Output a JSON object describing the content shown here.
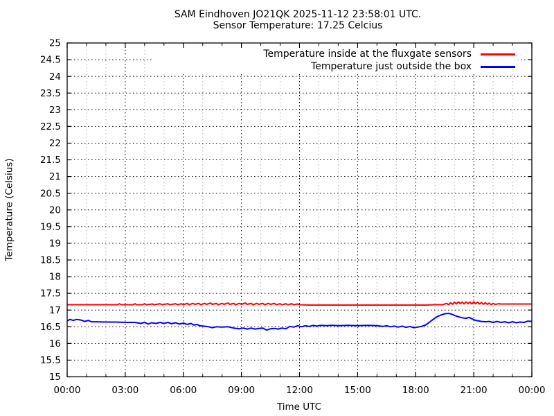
{
  "chart_data": {
    "type": "line",
    "title": "SAM Eindhoven JO21QK 2025-11-12 23:58:01 UTC.",
    "subtitle": "Sensor Temperature: 17.25 Celcius",
    "xlabel": "Time UTC",
    "ylabel": "Temperature (Celsius)",
    "xlim_hours": [
      0,
      24
    ],
    "ylim": [
      15,
      25
    ],
    "y_tick_step": 0.5,
    "y_tick_labels": [
      "15",
      "15.5",
      "16",
      "16.5",
      "17",
      "17.5",
      "18",
      "18.5",
      "19",
      "19.5",
      "20",
      "20.5",
      "21",
      "21.5",
      "22",
      "22.5",
      "23",
      "23.5",
      "24",
      "24.5",
      "25"
    ],
    "x_ticks": [
      {
        "hour": 0,
        "label": "00:00"
      },
      {
        "hour": 3,
        "label": "03:00"
      },
      {
        "hour": 6,
        "label": "06:00"
      },
      {
        "hour": 9,
        "label": "09:00"
      },
      {
        "hour": 12,
        "label": "12:00"
      },
      {
        "hour": 15,
        "label": "15:00"
      },
      {
        "hour": 18,
        "label": "18:00"
      },
      {
        "hour": 21,
        "label": "21:00"
      },
      {
        "hour": 24,
        "label": "00:00"
      }
    ],
    "x_minor_tick_interval_hours": 1,
    "grid": {
      "style": "dotted",
      "major_color": "#000000",
      "minor_color": "#b4b4b4",
      "on": true
    },
    "legend": {
      "position": "top-right-inside",
      "entries": [
        {
          "label": "Temperature inside at the fluxgate sensors",
          "color": "#ff0000"
        },
        {
          "label": "Temperature just outside the box",
          "color": "#0000ff"
        }
      ]
    },
    "series": [
      {
        "name": "Temperature inside at the fluxgate sensors",
        "color": "#ff0000",
        "unit": "Celsius",
        "points": [
          [
            0,
            17.16
          ],
          [
            0.5,
            17.16
          ],
          [
            1,
            17.16
          ],
          [
            1.5,
            17.16
          ],
          [
            2,
            17.16
          ],
          [
            2.6,
            17.16
          ],
          [
            2.7,
            17.19
          ],
          [
            2.8,
            17.16
          ],
          [
            3.4,
            17.16
          ],
          [
            3.5,
            17.19
          ],
          [
            3.6,
            17.16
          ],
          [
            3.9,
            17.16
          ],
          [
            4,
            17.19
          ],
          [
            4.1,
            17.16
          ],
          [
            4.4,
            17.18
          ],
          [
            4.5,
            17.16
          ],
          [
            4.8,
            17.19
          ],
          [
            4.9,
            17.16
          ],
          [
            5.2,
            17.19
          ],
          [
            5.3,
            17.16
          ],
          [
            5.6,
            17.19
          ],
          [
            5.7,
            17.16
          ],
          [
            5.9,
            17.19
          ],
          [
            6,
            17.16
          ],
          [
            6.2,
            17.2
          ],
          [
            6.3,
            17.16
          ],
          [
            6.5,
            17.2
          ],
          [
            6.6,
            17.17
          ],
          [
            6.8,
            17.2
          ],
          [
            6.9,
            17.16
          ],
          [
            7.1,
            17.2
          ],
          [
            7.2,
            17.17
          ],
          [
            7.4,
            17.21
          ],
          [
            7.5,
            17.17
          ],
          [
            7.7,
            17.2
          ],
          [
            7.8,
            17.16
          ],
          [
            8,
            17.2
          ],
          [
            8.1,
            17.17
          ],
          [
            8.3,
            17.21
          ],
          [
            8.4,
            17.17
          ],
          [
            8.6,
            17.2
          ],
          [
            8.7,
            17.16
          ],
          [
            8.9,
            17.2
          ],
          [
            9,
            17.17
          ],
          [
            9.2,
            17.21
          ],
          [
            9.3,
            17.17
          ],
          [
            9.5,
            17.2
          ],
          [
            9.6,
            17.16
          ],
          [
            9.8,
            17.2
          ],
          [
            9.9,
            17.17
          ],
          [
            10.1,
            17.2
          ],
          [
            10.2,
            17.16
          ],
          [
            10.4,
            17.2
          ],
          [
            10.5,
            17.17
          ],
          [
            10.7,
            17.2
          ],
          [
            10.8,
            17.16
          ],
          [
            11,
            17.19
          ],
          [
            11.1,
            17.16
          ],
          [
            11.3,
            17.19
          ],
          [
            11.4,
            17.16
          ],
          [
            11.6,
            17.19
          ],
          [
            11.7,
            17.16
          ],
          [
            11.9,
            17.18
          ],
          [
            12,
            17.16
          ],
          [
            12.5,
            17.15
          ],
          [
            13,
            17.15
          ],
          [
            13.5,
            17.15
          ],
          [
            14,
            17.15
          ],
          [
            14.5,
            17.15
          ],
          [
            15,
            17.15
          ],
          [
            15.5,
            17.15
          ],
          [
            16,
            17.15
          ],
          [
            16.5,
            17.15
          ],
          [
            17,
            17.15
          ],
          [
            17.5,
            17.15
          ],
          [
            18,
            17.15
          ],
          [
            18.5,
            17.15
          ],
          [
            19,
            17.16
          ],
          [
            19.4,
            17.16
          ],
          [
            19.6,
            17.2
          ],
          [
            19.7,
            17.16
          ],
          [
            19.8,
            17.22
          ],
          [
            19.9,
            17.17
          ],
          [
            20,
            17.24
          ],
          [
            20.1,
            17.18
          ],
          [
            20.2,
            17.25
          ],
          [
            20.3,
            17.19
          ],
          [
            20.4,
            17.24
          ],
          [
            20.5,
            17.18
          ],
          [
            20.6,
            17.25
          ],
          [
            20.7,
            17.19
          ],
          [
            20.8,
            17.24
          ],
          [
            20.9,
            17.18
          ],
          [
            21,
            17.25
          ],
          [
            21.1,
            17.19
          ],
          [
            21.2,
            17.24
          ],
          [
            21.3,
            17.18
          ],
          [
            21.4,
            17.23
          ],
          [
            21.5,
            17.17
          ],
          [
            21.6,
            17.22
          ],
          [
            21.7,
            17.17
          ],
          [
            21.8,
            17.21
          ],
          [
            21.9,
            17.16
          ],
          [
            22,
            17.2
          ],
          [
            22.1,
            17.17
          ],
          [
            22.3,
            17.19
          ],
          [
            22.4,
            17.18
          ],
          [
            22.6,
            17.18
          ],
          [
            23,
            17.18
          ],
          [
            23.5,
            17.18
          ],
          [
            24,
            17.18
          ]
        ]
      },
      {
        "name": "Temperature just outside the box",
        "color": "#0000ff",
        "unit": "Celsius",
        "points": [
          [
            0,
            16.68
          ],
          [
            0.15,
            16.72
          ],
          [
            0.3,
            16.69
          ],
          [
            0.5,
            16.72
          ],
          [
            0.7,
            16.7
          ],
          [
            0.9,
            16.66
          ],
          [
            1.1,
            16.69
          ],
          [
            1.25,
            16.65
          ],
          [
            1.5,
            16.65
          ],
          [
            2,
            16.64
          ],
          [
            2.5,
            16.64
          ],
          [
            3,
            16.63
          ],
          [
            3.5,
            16.63
          ],
          [
            3.8,
            16.6
          ],
          [
            4,
            16.63
          ],
          [
            4.2,
            16.58
          ],
          [
            4.35,
            16.62
          ],
          [
            4.6,
            16.6
          ],
          [
            4.8,
            16.63
          ],
          [
            5,
            16.6
          ],
          [
            5.2,
            16.63
          ],
          [
            5.4,
            16.59
          ],
          [
            5.6,
            16.62
          ],
          [
            5.8,
            16.58
          ],
          [
            6,
            16.61
          ],
          [
            6.2,
            16.57
          ],
          [
            6.4,
            16.6
          ],
          [
            6.55,
            16.55
          ],
          [
            6.7,
            16.57
          ],
          [
            6.85,
            16.53
          ],
          [
            7,
            16.52
          ],
          [
            7.3,
            16.5
          ],
          [
            7.5,
            16.47
          ],
          [
            7.7,
            16.5
          ],
          [
            8,
            16.49
          ],
          [
            8.3,
            16.5
          ],
          [
            8.6,
            16.46
          ],
          [
            8.9,
            16.44
          ],
          [
            9.1,
            16.46
          ],
          [
            9.3,
            16.43
          ],
          [
            9.5,
            16.46
          ],
          [
            9.7,
            16.43
          ],
          [
            9.9,
            16.45
          ],
          [
            10.1,
            16.46
          ],
          [
            10.3,
            16.4
          ],
          [
            10.5,
            16.44
          ],
          [
            10.7,
            16.45
          ],
          [
            10.9,
            16.43
          ],
          [
            11.1,
            16.46
          ],
          [
            11.3,
            16.44
          ],
          [
            11.5,
            16.51
          ],
          [
            11.7,
            16.49
          ],
          [
            11.9,
            16.53
          ],
          [
            12.1,
            16.5
          ],
          [
            12.3,
            16.53
          ],
          [
            12.5,
            16.51
          ],
          [
            12.7,
            16.54
          ],
          [
            12.9,
            16.52
          ],
          [
            13.1,
            16.54
          ],
          [
            13.4,
            16.53
          ],
          [
            13.7,
            16.54
          ],
          [
            14,
            16.53
          ],
          [
            14.5,
            16.54
          ],
          [
            15,
            16.53
          ],
          [
            15.5,
            16.54
          ],
          [
            16,
            16.53
          ],
          [
            16.3,
            16.51
          ],
          [
            16.5,
            16.53
          ],
          [
            16.7,
            16.5
          ],
          [
            16.9,
            16.52
          ],
          [
            17.1,
            16.49
          ],
          [
            17.3,
            16.52
          ],
          [
            17.5,
            16.48
          ],
          [
            17.7,
            16.51
          ],
          [
            17.9,
            16.47
          ],
          [
            18.1,
            16.49
          ],
          [
            18.3,
            16.51
          ],
          [
            18.5,
            16.55
          ],
          [
            18.7,
            16.63
          ],
          [
            18.9,
            16.72
          ],
          [
            19.1,
            16.8
          ],
          [
            19.3,
            16.85
          ],
          [
            19.5,
            16.89
          ],
          [
            19.7,
            16.9
          ],
          [
            19.85,
            16.88
          ],
          [
            20,
            16.84
          ],
          [
            20.2,
            16.8
          ],
          [
            20.4,
            16.77
          ],
          [
            20.6,
            16.75
          ],
          [
            20.75,
            16.78
          ],
          [
            20.9,
            16.74
          ],
          [
            21.05,
            16.7
          ],
          [
            21.2,
            16.68
          ],
          [
            21.4,
            16.66
          ],
          [
            21.6,
            16.65
          ],
          [
            21.8,
            16.66
          ],
          [
            22,
            16.63
          ],
          [
            22.2,
            16.66
          ],
          [
            22.4,
            16.63
          ],
          [
            22.6,
            16.65
          ],
          [
            22.8,
            16.62
          ],
          [
            23,
            16.65
          ],
          [
            23.2,
            16.62
          ],
          [
            23.4,
            16.64
          ],
          [
            23.6,
            16.63
          ],
          [
            23.8,
            16.67
          ],
          [
            24,
            16.66
          ]
        ]
      }
    ]
  }
}
